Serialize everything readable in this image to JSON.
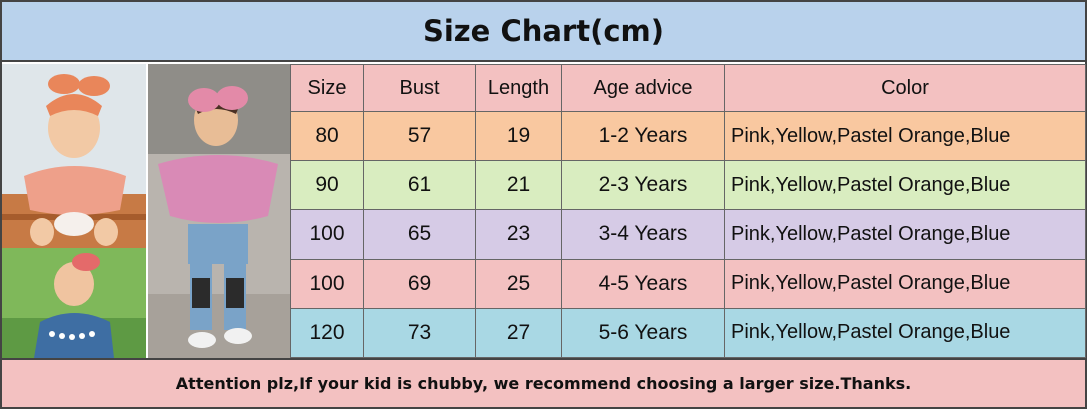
{
  "title": "Size Chart(cm)",
  "headers": [
    "Size",
    "Bust",
    "Length",
    "Age advice",
    "Color"
  ],
  "rows": [
    {
      "size": "80",
      "bust": "57",
      "length": "19",
      "age": "1-2 Years",
      "color": "Pink,Yellow,Pastel Orange,Blue",
      "bg": "#f9c8a0"
    },
    {
      "size": "90",
      "bust": "61",
      "length": "21",
      "age": "2-3 Years",
      "color": "Pink,Yellow,Pastel Orange,Blue",
      "bg": "#d9edc0"
    },
    {
      "size": "100",
      "bust": "65",
      "length": "23",
      "age": "3-4 Years",
      "color": "Pink,Yellow,Pastel Orange,Blue",
      "bg": "#d6cbe6"
    },
    {
      "size": "100",
      "bust": "69",
      "length": "25",
      "age": "4-5 Years",
      "color": "Pink,Yellow,Pastel Orange,Blue",
      "bg": "#f3c1c1"
    },
    {
      "size": "120",
      "bust": "73",
      "length": "27",
      "age": "5-6 Years",
      "color": "Pink,Yellow,Pastel Orange,Blue",
      "bg": "#a9d8e4"
    }
  ],
  "footer": "Attention plz,If your kid is chubby, we recommend choosing a larger size.Thanks.",
  "colors": {
    "title_bg": "#b9d2ec",
    "header_bg": "#f3c1c1",
    "footer_bg": "#f3c1c1"
  }
}
